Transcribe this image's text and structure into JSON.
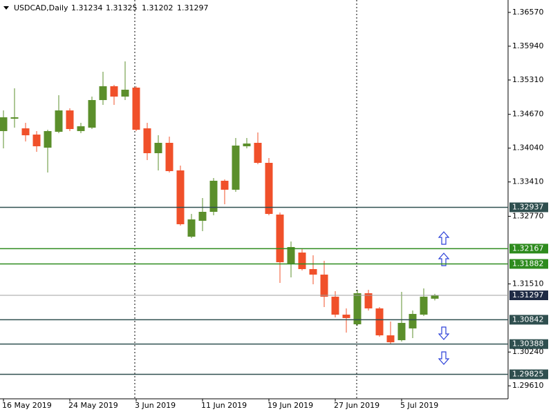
{
  "chart_data": {
    "type": "candlestick",
    "title": "USDCAD,Daily",
    "categories": [
      "16 May 2019",
      null,
      null,
      null,
      null,
      null,
      "24 May 2019",
      null,
      null,
      null,
      null,
      null,
      "3 Jun 2019",
      null,
      null,
      null,
      null,
      null,
      "11 Jun 2019",
      null,
      null,
      null,
      null,
      null,
      "19 Jun 2019",
      null,
      null,
      null,
      null,
      null,
      "27 Jun 2019",
      null,
      null,
      null,
      null,
      null,
      "5 Jul 2019",
      null,
      null,
      null
    ],
    "open": [
      1.34358,
      1.34589,
      1.34409,
      1.34293,
      1.34049,
      1.34345,
      1.34743,
      1.34358,
      1.34422,
      1.34936,
      1.35194,
      1.35001,
      1.35168,
      1.34409,
      1.33946,
      1.34139,
      1.33625,
      1.3239,
      1.32686,
      1.32853,
      1.33432,
      1.33265,
      1.34075,
      1.34139,
      1.33766,
      1.32802,
      1.31889,
      1.32094,
      1.31786,
      1.31683,
      1.31271,
      1.30937,
      1.30757,
      1.31336,
      1.31053,
      1.30551,
      1.30461,
      1.3068,
      1.30937,
      1.31234
    ],
    "high": [
      1.34743,
      1.35155,
      1.34512,
      1.34358,
      1.34383,
      1.35026,
      1.34782,
      1.34512,
      1.35001,
      1.35464,
      1.35219,
      1.35656,
      1.35194,
      1.34512,
      1.3428,
      1.34255,
      1.33715,
      1.32814,
      1.3311,
      1.33483,
      1.33457,
      1.34229,
      1.34229,
      1.34332,
      1.33856,
      1.3284,
      1.323,
      1.32171,
      1.32043,
      1.3194,
      1.31374,
      1.31053,
      1.314,
      1.314,
      1.31078,
      1.30808,
      1.31361,
      1.31014,
      1.31426,
      1.31325
    ],
    "low": [
      1.34036,
      1.34422,
      1.34165,
      1.33972,
      1.33586,
      1.34319,
      1.34358,
      1.34319,
      1.34396,
      1.34846,
      1.34846,
      1.34936,
      1.34358,
      1.33818,
      1.33625,
      1.33586,
      1.32596,
      1.32364,
      1.32493,
      1.32789,
      1.32994,
      1.33226,
      1.34036,
      1.3374,
      1.32789,
      1.31528,
      1.31631,
      1.3176,
      1.31503,
      1.31078,
      1.30885,
      1.30603,
      1.30731,
      1.31014,
      1.30525,
      1.30397,
      1.30435,
      1.305,
      1.30911,
      1.31202
    ],
    "close": [
      1.34615,
      1.34615,
      1.3428,
      1.34075,
      1.34358,
      1.34743,
      1.34396,
      1.34448,
      1.34936,
      1.35194,
      1.35001,
      1.35129,
      1.34383,
      1.33946,
      1.34139,
      1.33612,
      1.32622,
      1.32712,
      1.32853,
      1.33432,
      1.33265,
      1.34088,
      1.34126,
      1.33766,
      1.32814,
      1.31914,
      1.32197,
      1.31786,
      1.31683,
      1.31271,
      1.30937,
      1.30873,
      1.31336,
      1.31053,
      1.30551,
      1.30422,
      1.30783,
      1.3095,
      1.31271,
      1.31297
    ],
    "up_color": "#5b8f2b",
    "down_color": "#f0502a",
    "ylim": [
      1.29368,
      1.36801
    ],
    "yticks": [
      {
        "value": 1.3657,
        "label": "1.36570"
      },
      {
        "value": 1.3594,
        "label": "1.35940"
      },
      {
        "value": 1.3531,
        "label": "1.35310"
      },
      {
        "value": 1.3467,
        "label": "1.34670"
      },
      {
        "value": 1.3404,
        "label": "1.34040"
      },
      {
        "value": 1.3341,
        "label": "1.33410"
      },
      {
        "value": 1.3277,
        "label": "1.32770"
      },
      {
        "value": 1.3151,
        "label": "1.31510"
      },
      {
        "value": 1.3024,
        "label": "1.30240"
      },
      {
        "value": 1.2961,
        "label": "1.29610"
      }
    ],
    "levels": [
      {
        "value": 1.32937,
        "color": "#2f4f4f"
      },
      {
        "value": 1.32167,
        "color": "#2e8b1e"
      },
      {
        "value": 1.31882,
        "color": "#2e8b1e"
      },
      {
        "value": 1.31297,
        "color": "#a0a0a0"
      },
      {
        "value": 1.30842,
        "color": "#2f4f4f"
      },
      {
        "value": 1.30388,
        "color": "#2f4f4f"
      },
      {
        "value": 1.29825,
        "color": "#2f4f4f"
      }
    ]
  }
}
